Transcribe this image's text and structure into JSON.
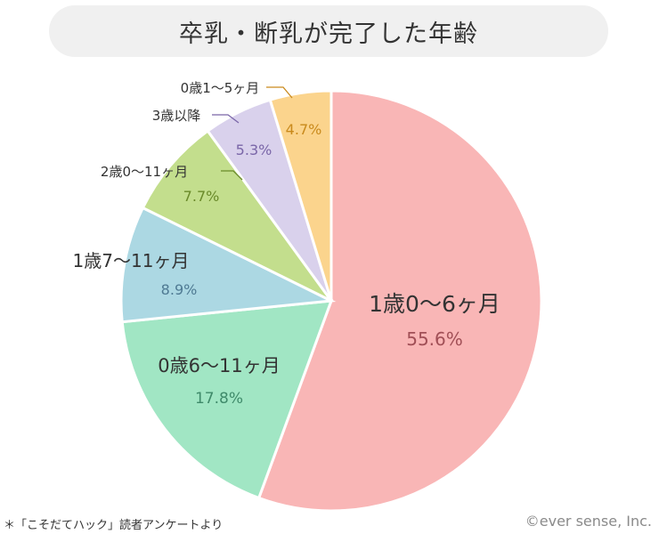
{
  "title": "卒乳・断乳が完了した年齢",
  "chart_data": {
    "type": "pie",
    "slices": [
      {
        "label": "1歳0〜6ヶ月",
        "value": 55.6,
        "value_label": "55.6%",
        "color": "#f9b6b6",
        "value_color": "#a14f56"
      },
      {
        "label": "0歳6〜11ヶ月",
        "value": 17.8,
        "value_label": "17.8%",
        "color": "#a1e6c4",
        "value_color": "#3f8a6a"
      },
      {
        "label": "1歳7〜11ヶ月",
        "value": 8.9,
        "value_label": "8.9%",
        "color": "#acd8e3",
        "value_color": "#4f7a93"
      },
      {
        "label": "2歳0〜11ヶ月",
        "value": 7.7,
        "value_label": "7.7%",
        "color": "#c3de8d",
        "value_color": "#6a8a2a"
      },
      {
        "label": "3歳以降",
        "value": 5.3,
        "value_label": "5.3%",
        "color": "#d9d1ec",
        "value_color": "#7a66a8"
      },
      {
        "label": "0歳1〜5ヶ月",
        "value": 4.7,
        "value_label": "4.7%",
        "color": "#fbd48d",
        "value_color": "#c98a1c"
      }
    ]
  },
  "footnote": "＊「こそだてハック」読者アンケートより",
  "credit": "©ever sense, Inc."
}
